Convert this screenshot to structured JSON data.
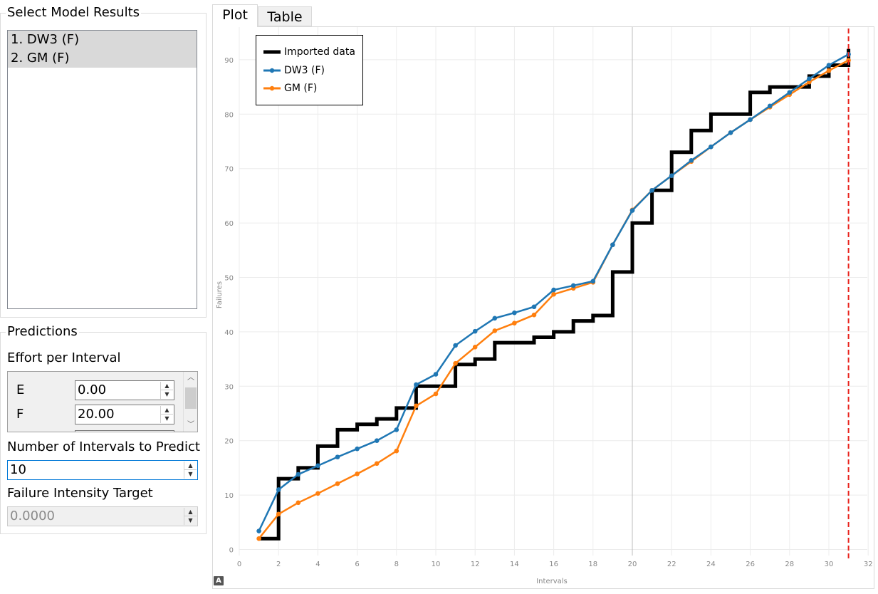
{
  "left_panel": {
    "models_title": "Select Model Results",
    "models": [
      "1. DW3 (F)",
      "2. GM (F)"
    ],
    "predictions_title": "Predictions",
    "effort_label": "Effort per Interval",
    "effort_rows": [
      {
        "name": "E",
        "value": "0.00"
      },
      {
        "name": "F",
        "value": "20.00"
      }
    ],
    "num_intervals_label": "Number of Intervals to Predict",
    "num_intervals_value": "10",
    "fit_label": "Failure Intensity Target",
    "fit_value": "0.0000"
  },
  "tabs": {
    "plot": "Plot",
    "table": "Table"
  },
  "badge": "A",
  "chart_data": {
    "type": "line",
    "xlabel": "Intervals",
    "ylabel": "Failures",
    "xlim": [
      0,
      32
    ],
    "ylim": [
      0,
      92
    ],
    "xticks": [
      0,
      2,
      4,
      6,
      8,
      10,
      12,
      14,
      16,
      18,
      20,
      22,
      24,
      26,
      28,
      30,
      32
    ],
    "yticks": [
      0,
      10,
      20,
      30,
      40,
      50,
      60,
      70,
      80,
      90
    ],
    "grid": true,
    "legend_position": "top-left",
    "prediction_marker_x": 31,
    "series": [
      {
        "name": "Imported data",
        "style": "step",
        "color": "#000000",
        "x": [
          1,
          2,
          3,
          4,
          5,
          6,
          7,
          8,
          9,
          10,
          11,
          12,
          13,
          14,
          15,
          16,
          17,
          18,
          19,
          20,
          21,
          22,
          23,
          24,
          25,
          26,
          27,
          28,
          29,
          30,
          31
        ],
        "y": [
          2,
          13,
          15,
          19,
          22,
          23,
          24,
          26,
          30,
          30,
          34,
          35,
          38,
          38,
          39,
          40,
          42,
          43,
          51,
          60,
          66,
          73,
          77,
          80,
          80,
          84,
          85,
          85,
          87,
          89,
          92
        ]
      },
      {
        "name": "DW3 (F)",
        "style": "line-markers",
        "color": "#1f77b4",
        "x": [
          1,
          2,
          3,
          4,
          5,
          6,
          7,
          8,
          9,
          10,
          11,
          12,
          13,
          14,
          15,
          16,
          17,
          18,
          19,
          20,
          21,
          22,
          23,
          24,
          25,
          26,
          27,
          28,
          29,
          30,
          31
        ],
        "y": [
          3.4,
          11.0,
          13.8,
          15.4,
          17.0,
          18.5,
          20.0,
          22.0,
          30.3,
          32.2,
          37.5,
          40.1,
          42.5,
          43.5,
          44.6,
          47.7,
          48.5,
          49.3,
          56.0,
          62.3,
          66.0,
          68.7,
          71.5,
          74.0,
          76.6,
          79.0,
          81.5,
          84.0,
          86.5,
          89.0,
          91.0
        ]
      },
      {
        "name": "GM (F)",
        "style": "line-markers",
        "color": "#ff7f0e",
        "x": [
          1,
          2,
          3,
          4,
          5,
          6,
          7,
          8,
          9,
          10,
          11,
          12,
          13,
          14,
          15,
          16,
          17,
          18,
          19,
          20,
          21,
          22,
          23,
          24,
          25,
          26,
          27,
          28,
          29,
          30,
          31
        ],
        "y": [
          2.0,
          6.5,
          8.6,
          10.3,
          12.1,
          13.9,
          15.8,
          18.1,
          26.4,
          28.6,
          34.2,
          37.2,
          40.2,
          41.6,
          43.1,
          46.9,
          48.0,
          49.1,
          56.0,
          62.4,
          66.0,
          68.7,
          71.3,
          74.0,
          76.6,
          79.0,
          81.3,
          83.6,
          85.9,
          88.0,
          89.9
        ]
      }
    ]
  }
}
